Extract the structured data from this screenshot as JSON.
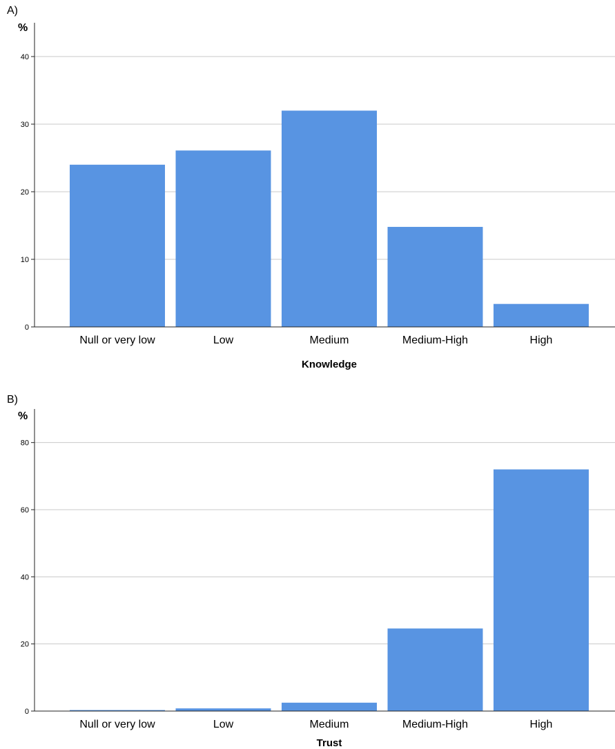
{
  "chart_data": [
    {
      "type": "bar",
      "panel_label": "A)",
      "ylabel": "%",
      "xlabel": "Knowledge",
      "categories": [
        "Null or very low",
        "Low",
        "Medium",
        "Medium-High",
        "High"
      ],
      "values": [
        24.0,
        26.1,
        32.0,
        14.8,
        3.4
      ],
      "ylim": [
        0,
        45
      ],
      "yticks": [
        0,
        10,
        20,
        30,
        40
      ],
      "grid": true,
      "bar_color": "#5894e2"
    },
    {
      "type": "bar",
      "panel_label": "B)",
      "ylabel": "%",
      "xlabel": "Trust",
      "categories": [
        "Null or very low",
        "Low",
        "Medium",
        "Medium-High",
        "High"
      ],
      "values": [
        0.3,
        0.8,
        2.5,
        24.6,
        72.0
      ],
      "ylim": [
        0,
        90
      ],
      "yticks": [
        0,
        20,
        40,
        60,
        80
      ],
      "grid": true,
      "bar_color": "#5894e2"
    }
  ]
}
